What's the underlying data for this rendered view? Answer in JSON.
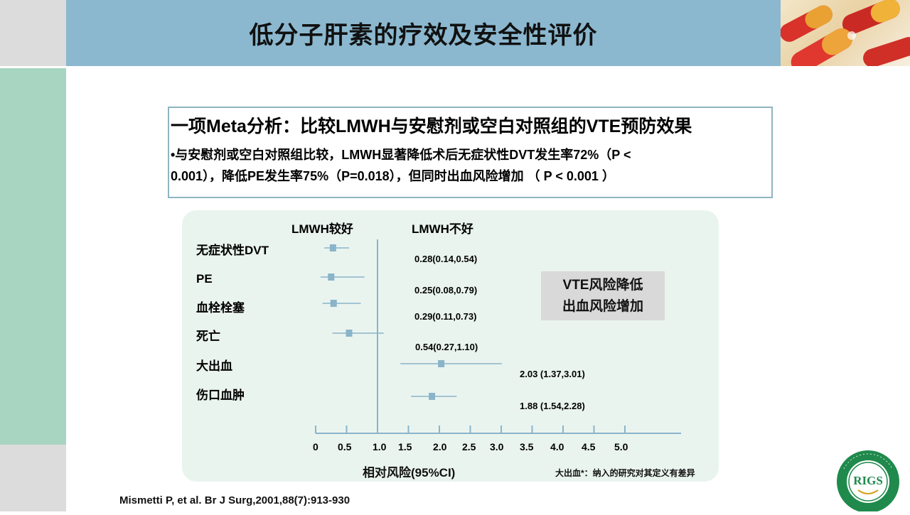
{
  "slide": {
    "title": "低分子肝素的疗效及安全性评价"
  },
  "summary": {
    "title": "一项Meta分析：比较LMWH与安慰剂或空白对照组的VTE预防效果",
    "line1": "•与安慰剂或空白对照组比较，LMWH显著降低术后无症状性DVT发生率72%（P <",
    "line2": "0.001），降低PE发生率75%（P=0.018），但同时出血风险增加 （ P < 0.001 ）"
  },
  "chart_data": {
    "type": "forest",
    "header_left": "LMWH较好",
    "header_right": "LMWH不好",
    "reference_line": 1.0,
    "xlim": [
      0,
      5.75
    ],
    "x_ticks": [
      0,
      0.5,
      1.0,
      1.5,
      2.0,
      2.5,
      3.0,
      3.5,
      4.0,
      4.5,
      5.0
    ],
    "x_tick_labels": [
      "0",
      "0.5",
      "1.0",
      "1.5",
      "2.0",
      "2.5",
      "3.0",
      "3.5",
      "4.0",
      "4.5",
      "5.0"
    ],
    "xlabel": "相对风险(95%CI)",
    "rows": [
      {
        "label": "无症状性DVT",
        "estimate": 0.28,
        "low": 0.14,
        "high": 0.54,
        "ci_text": "0.28(0.14,0.54)"
      },
      {
        "label": "PE",
        "estimate": 0.25,
        "low": 0.08,
        "high": 0.79,
        "ci_text": "0.25(0.08,0.79)"
      },
      {
        "label": "血栓栓塞",
        "estimate": 0.29,
        "low": 0.11,
        "high": 0.73,
        "ci_text": "0.29(0.11,0.73)"
      },
      {
        "label": "死亡",
        "estimate": 0.54,
        "low": 0.27,
        "high": 1.1,
        "ci_text": "0.54(0.27,1.10)"
      },
      {
        "label": "大出血",
        "estimate": 2.03,
        "low": 1.37,
        "high": 3.01,
        "ci_text": "2.03 (1.37,3.01)"
      },
      {
        "label": "伤口血肿",
        "estimate": 1.88,
        "low": 1.54,
        "high": 2.28,
        "ci_text": "1.88 (1.54,2.28)"
      }
    ],
    "marker_color": "#8ab4c9"
  },
  "risk_note": {
    "line1": "VTE风险降低",
    "line2": "出血风险增加"
  },
  "footnote": "大出血*：纳入的研究对其定义有差异",
  "citation": "Mismetti P, et al. Br J Surg,2001,88(7):913-930",
  "logo": {
    "ring_text": "Research Institute of General Surgery PLA",
    "center_text": "RIGS"
  },
  "colors": {
    "header_band": "#8bb8cf",
    "left_bar": "#a7d5c1",
    "panel": "#eaf4ef",
    "accent_green": "#1f8a4c"
  }
}
